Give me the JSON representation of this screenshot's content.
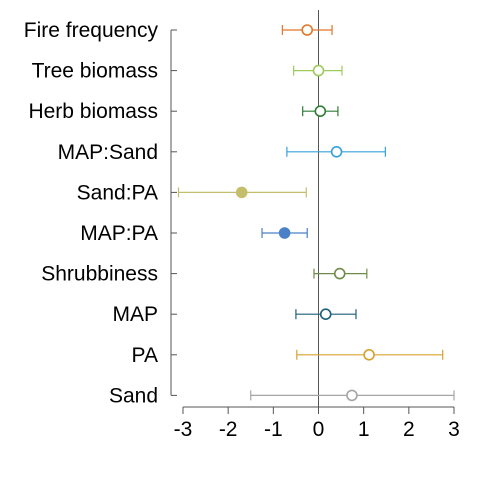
{
  "chart_data": {
    "type": "scatter",
    "subtype": "coefficient-plot",
    "title": "",
    "xlabel": "",
    "ylabel": "",
    "xlim": [
      -3,
      3
    ],
    "x_ticks": [
      "-3",
      "-2",
      "-1",
      "0",
      "1",
      "2",
      "3"
    ],
    "zero_line": true,
    "grid": false,
    "legend": "none",
    "categories": [
      "Fire frequency",
      "Tree biomass",
      "Herb biomass",
      "MAP:Sand",
      "Sand:PA",
      "MAP:PA",
      "Shrubbiness",
      "MAP",
      "PA",
      "Sand"
    ],
    "points": [
      {
        "label": "Fire frequency",
        "estimate": -0.25,
        "lower": -0.8,
        "upper": 0.3,
        "filled": false,
        "color": "#e2762a"
      },
      {
        "label": "Tree biomass",
        "estimate": 0.0,
        "lower": -0.55,
        "upper": 0.52,
        "filled": false,
        "color": "#9dcb5c"
      },
      {
        "label": "Herb biomass",
        "estimate": 0.04,
        "lower": -0.35,
        "upper": 0.43,
        "filled": false,
        "color": "#2f7d37"
      },
      {
        "label": "MAP:Sand",
        "estimate": 0.4,
        "lower": -0.7,
        "upper": 1.48,
        "filled": false,
        "color": "#36a0da"
      },
      {
        "label": "Sand:PA",
        "estimate": -1.7,
        "lower": -3.1,
        "upper": -0.27,
        "filled": true,
        "color": "#c5bf6d"
      },
      {
        "label": "MAP:PA",
        "estimate": -0.75,
        "lower": -1.25,
        "upper": -0.25,
        "filled": true,
        "color": "#4a80c6"
      },
      {
        "label": "Shrubbiness",
        "estimate": 0.47,
        "lower": -0.1,
        "upper": 1.07,
        "filled": false,
        "color": "#6e8c48"
      },
      {
        "label": "MAP",
        "estimate": 0.16,
        "lower": -0.5,
        "upper": 0.83,
        "filled": false,
        "color": "#1e5f7a"
      },
      {
        "label": "PA",
        "estimate": 1.12,
        "lower": -0.48,
        "upper": 2.75,
        "filled": false,
        "color": "#d6a22f"
      },
      {
        "label": "Sand",
        "estimate": 0.74,
        "lower": -1.5,
        "upper": 3.0,
        "filled": false,
        "color": "#a5a5a5"
      }
    ]
  }
}
